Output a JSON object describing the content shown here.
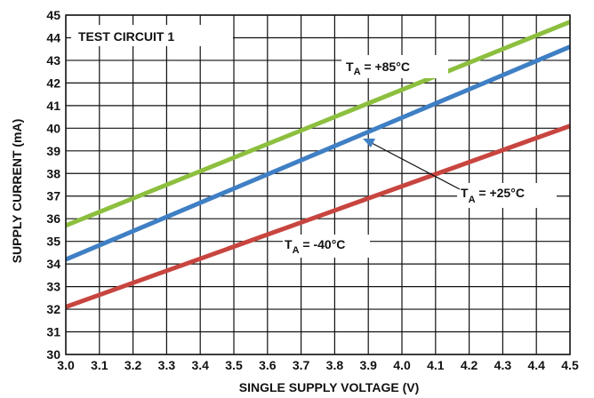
{
  "chart_data": {
    "type": "line",
    "xlabel": "SINGLE SUPPLY VOLTAGE (V)",
    "ylabel": "SUPPLY CURRENT (mA)",
    "xlim": [
      3.0,
      4.5
    ],
    "ylim": [
      30,
      45
    ],
    "x_ticks": [
      "3.0",
      "3.1",
      "3.2",
      "3.3",
      "3.4",
      "3.5",
      "3.6",
      "3.7",
      "3.8",
      "3.9",
      "4.0",
      "4.1",
      "4.2",
      "4.3",
      "4.4",
      "4.5"
    ],
    "y_ticks": [
      "30",
      "31",
      "32",
      "33",
      "34",
      "35",
      "36",
      "37",
      "38",
      "39",
      "40",
      "41",
      "42",
      "43",
      "44",
      "45"
    ],
    "grid": true,
    "test_circuit_label": "TEST CIRCUIT 1",
    "series": [
      {
        "name": "T_A = +85°C",
        "color": "#8dbf3f",
        "x": [
          3.0,
          4.5
        ],
        "y": [
          35.7,
          44.7
        ]
      },
      {
        "name": "T_A = +25°C",
        "color": "#3f7fc4",
        "x": [
          3.0,
          4.5
        ],
        "y": [
          34.2,
          43.6
        ]
      },
      {
        "name": "T_A = -40°C",
        "color": "#c8453f",
        "x": [
          3.0,
          4.5
        ],
        "y": [
          32.1,
          40.1
        ]
      }
    ],
    "annotations": [
      {
        "main": "T",
        "sub": "A",
        "rest": " = +85°C"
      },
      {
        "main": "T",
        "sub": "A",
        "rest": " = +25°C"
      },
      {
        "main": "T",
        "sub": "A",
        "rest": " = -40°C"
      }
    ]
  }
}
